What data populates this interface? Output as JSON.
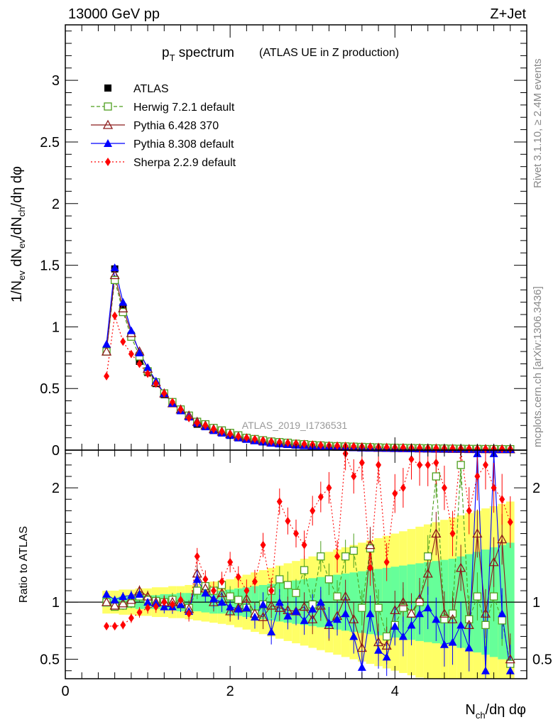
{
  "header": {
    "left": "13000 GeV pp",
    "right": "Z+Jet"
  },
  "side_text": {
    "top": "Rivet 3.1.10, ≥ 2.4M events",
    "bottom": "mcplots.cern.ch [arXiv:1306.3436]"
  },
  "watermark": "ATLAS_2019_I1736531",
  "chart_data": [
    {
      "type": "scatter",
      "panel": "main",
      "title": "p_T spectrum",
      "subtitle": "(ATLAS UE in Z production)",
      "ylabel": "1/N_ev dN_ev/dN_ch/dη dφ",
      "xlim": [
        0,
        5.6
      ],
      "ylim": [
        0,
        3.45
      ],
      "yticks": [
        0,
        0.5,
        1,
        1.5,
        2,
        2.5,
        3
      ],
      "ytick_labels": [
        "0",
        "0.5",
        "1",
        "1.5",
        "2",
        "2.5",
        "3"
      ],
      "legend_position": "top-left",
      "x": [
        0.5,
        0.6,
        0.7,
        0.8,
        0.9,
        1.0,
        1.1,
        1.2,
        1.3,
        1.4,
        1.5,
        1.6,
        1.7,
        1.8,
        1.9,
        2.0,
        2.1,
        2.2,
        2.3,
        2.4,
        2.5,
        2.6,
        2.7,
        2.8,
        2.9,
        3.0,
        3.1,
        3.2,
        3.3,
        3.4,
        3.5,
        3.6,
        3.7,
        3.8,
        3.9,
        4.0,
        4.1,
        4.2,
        4.3,
        4.4,
        4.5,
        4.6,
        4.7,
        4.8,
        4.9,
        5.0,
        5.1,
        5.2,
        5.3,
        5.4
      ],
      "series": [
        {
          "name": "ATLAS",
          "color": "#000000",
          "marker": "square",
          "values": [
            0.8,
            1.47,
            1.16,
            0.93,
            0.72,
            0.63,
            0.54,
            0.45,
            0.38,
            0.33,
            0.27,
            0.21,
            0.19,
            0.16,
            0.14,
            0.12,
            0.1,
            0.09,
            0.08,
            0.07,
            0.06,
            0.055,
            0.05,
            0.045,
            0.04,
            0.035,
            0.032,
            0.03,
            0.028,
            0.026,
            0.024,
            0.022,
            0.02,
            0.019,
            0.018,
            0.017,
            0.016,
            0.015,
            0.014,
            0.013,
            0.012,
            0.011,
            0.01,
            0.01,
            0.009,
            0.009,
            0.008,
            0.008,
            0.007,
            0.007
          ]
        },
        {
          "name": "Herwig 7.2.1 default",
          "color": "#4d9f1e",
          "marker": "open-square",
          "values": [
            0.8,
            1.38,
            1.12,
            0.92,
            0.76,
            0.64,
            0.55,
            0.46,
            0.39,
            0.33,
            0.28,
            0.23,
            0.21,
            0.18,
            0.16,
            0.14,
            0.12,
            0.1,
            0.09,
            0.08,
            0.07,
            0.065,
            0.06,
            0.052,
            0.048,
            0.042,
            0.038,
            0.034,
            0.032,
            0.03,
            0.028,
            0.026,
            0.024,
            0.022,
            0.02,
            0.019,
            0.018,
            0.017,
            0.016,
            0.015,
            0.014,
            0.013,
            0.012,
            0.011,
            0.01,
            0.01,
            0.009,
            0.009,
            0.008,
            0.008
          ]
        },
        {
          "name": "Pythia 6.428 370",
          "color": "#8b1a1a",
          "marker": "open-triangle",
          "values": [
            0.8,
            1.42,
            1.15,
            0.95,
            0.8,
            0.66,
            0.55,
            0.46,
            0.38,
            0.33,
            0.28,
            0.23,
            0.2,
            0.17,
            0.15,
            0.13,
            0.11,
            0.095,
            0.082,
            0.072,
            0.063,
            0.057,
            0.052,
            0.047,
            0.042,
            0.037,
            0.033,
            0.03,
            0.028,
            0.026,
            0.024,
            0.022,
            0.02,
            0.019,
            0.018,
            0.017,
            0.016,
            0.015,
            0.014,
            0.013,
            0.012,
            0.011,
            0.01,
            0.01,
            0.009,
            0.009,
            0.008,
            0.008,
            0.007,
            0.007
          ]
        },
        {
          "name": "Pythia 8.308 default",
          "color": "#0000ff",
          "marker": "triangle",
          "values": [
            0.86,
            1.48,
            1.2,
            0.97,
            0.79,
            0.67,
            0.56,
            0.46,
            0.38,
            0.32,
            0.27,
            0.22,
            0.19,
            0.16,
            0.14,
            0.12,
            0.1,
            0.088,
            0.076,
            0.066,
            0.057,
            0.051,
            0.046,
            0.041,
            0.037,
            0.033,
            0.03,
            0.027,
            0.025,
            0.023,
            0.021,
            0.019,
            0.018,
            0.017,
            0.016,
            0.015,
            0.014,
            0.013,
            0.012,
            0.011,
            0.01,
            0.01,
            0.009,
            0.009,
            0.008,
            0.008,
            0.007,
            0.007,
            0.006,
            0.006
          ]
        },
        {
          "name": "Sherpa 2.2.9 default",
          "color": "#ff0000",
          "marker": "diamond",
          "values": [
            0.6,
            1.09,
            0.88,
            0.78,
            0.7,
            0.62,
            0.54,
            0.46,
            0.39,
            0.33,
            0.26,
            0.22,
            0.2,
            0.17,
            0.15,
            0.13,
            0.11,
            0.1,
            0.09,
            0.08,
            0.07,
            0.065,
            0.06,
            0.055,
            0.05,
            0.045,
            0.04,
            0.038,
            0.035,
            0.033,
            0.031,
            0.029,
            0.027,
            0.025,
            0.023,
            0.021,
            0.02,
            0.019,
            0.018,
            0.017,
            0.016,
            0.015,
            0.014,
            0.013,
            0.012,
            0.011,
            0.011,
            0.01,
            0.01,
            0.009
          ]
        }
      ]
    },
    {
      "type": "scatter",
      "panel": "ratio",
      "ylabel": "Ratio to ATLAS",
      "xlabel": "N_ch/dη dφ",
      "xlim": [
        0,
        5.6
      ],
      "ylim": [
        0.33,
        2.33
      ],
      "xticks": [
        0,
        2,
        4
      ],
      "xtick_labels": [
        "0",
        "2",
        "4"
      ],
      "yticks": [
        0.5,
        1,
        2
      ],
      "ytick_labels": [
        "0.5",
        "1",
        "2"
      ],
      "reference_line": 1,
      "band_colors": {
        "stat": "#66ff99",
        "total": "#ffff66"
      },
      "x": [
        0.5,
        0.6,
        0.7,
        0.8,
        0.9,
        1.0,
        1.1,
        1.2,
        1.3,
        1.4,
        1.5,
        1.6,
        1.7,
        1.8,
        1.9,
        2.0,
        2.1,
        2.2,
        2.3,
        2.4,
        2.5,
        2.6,
        2.7,
        2.8,
        2.9,
        3.0,
        3.1,
        3.2,
        3.3,
        3.4,
        3.5,
        3.6,
        3.7,
        3.8,
        3.9,
        4.0,
        4.1,
        4.2,
        4.3,
        4.4,
        4.5,
        4.6,
        4.7,
        4.8,
        4.9,
        5.0,
        5.1,
        5.2,
        5.3,
        5.4
      ],
      "band_stat": [
        0.04,
        0.04,
        0.05,
        0.05,
        0.06,
        0.06,
        0.06,
        0.07,
        0.07,
        0.08,
        0.08,
        0.08,
        0.09,
        0.1,
        0.1,
        0.11,
        0.12,
        0.13,
        0.14,
        0.15,
        0.16,
        0.17,
        0.18,
        0.19,
        0.2,
        0.21,
        0.22,
        0.23,
        0.24,
        0.25,
        0.26,
        0.27,
        0.28,
        0.29,
        0.3,
        0.31,
        0.32,
        0.33,
        0.34,
        0.35,
        0.36,
        0.37,
        0.38,
        0.4,
        0.42,
        0.44,
        0.46,
        0.48,
        0.5,
        0.52
      ],
      "band_total": [
        0.1,
        0.1,
        0.11,
        0.11,
        0.12,
        0.12,
        0.13,
        0.13,
        0.14,
        0.14,
        0.15,
        0.16,
        0.17,
        0.18,
        0.19,
        0.2,
        0.22,
        0.24,
        0.26,
        0.28,
        0.3,
        0.32,
        0.34,
        0.36,
        0.38,
        0.4,
        0.42,
        0.44,
        0.46,
        0.48,
        0.5,
        0.52,
        0.54,
        0.56,
        0.58,
        0.6,
        0.62,
        0.64,
        0.66,
        0.68,
        0.7,
        0.72,
        0.74,
        0.76,
        0.78,
        0.8,
        0.82,
        0.84,
        0.86,
        0.88
      ],
      "series": [
        {
          "name": "Herwig 7.2.1 default",
          "color": "#4d9f1e",
          "marker": "open-square",
          "values": [
            1.0,
            0.96,
            0.97,
            0.99,
            1.05,
            1.02,
            1.01,
            1.0,
            1.02,
            0.98,
            0.95,
            1.1,
            1.14,
            1.1,
            1.15,
            1.05,
            1.02,
            0.95,
            0.9,
            0.98,
            1.1,
            1.2,
            1.15,
            1.08,
            1.28,
            0.98,
            1.4,
            1.2,
            1.05,
            1.4,
            1.45,
            0.95,
            1.47,
            0.95,
            0.7,
            0.8,
            0.95,
            0.9,
            1.0,
            1.4,
            2.1,
            0.85,
            0.9,
            2.2,
            0.85,
            1.05,
            0.8,
            1.05,
            0.84,
            0.46
          ]
        },
        {
          "name": "Pythia 6.428 370",
          "color": "#8b1a1a",
          "marker": "open-triangle",
          "values": [
            1.0,
            0.97,
            0.99,
            1.02,
            1.1,
            1.05,
            1.0,
            1.0,
            1.0,
            1.0,
            0.94,
            1.25,
            1.12,
            1.0,
            1.08,
            0.92,
            0.95,
            1.03,
            0.9,
            0.87,
            0.97,
            0.95,
            0.93,
            0.92,
            0.96,
            0.85,
            0.97,
            0.8,
            0.88,
            1.05,
            0.85,
            0.6,
            1.5,
            0.65,
            0.62,
            0.93,
            1.0,
            0.9,
            1.03,
            1.25,
            1.6,
            0.9,
            0.85,
            1.3,
            0.8,
            1.6,
            0.9,
            1.35,
            1.55,
            0.5
          ]
        },
        {
          "name": "Pythia 8.308 default",
          "color": "#0000ff",
          "marker": "triangle",
          "values": [
            1.07,
            1.02,
            1.05,
            1.06,
            1.07,
            1.0,
            0.99,
            0.96,
            0.96,
            0.98,
            0.92,
            1.2,
            1.08,
            1.03,
            1.0,
            0.96,
            0.94,
            0.95,
            0.87,
            0.98,
            0.74,
            1.0,
            0.88,
            0.92,
            0.84,
            0.94,
            1.0,
            0.82,
            0.85,
            0.9,
            0.7,
            0.43,
            0.9,
            0.58,
            0.52,
            0.79,
            0.7,
            0.8,
            0.9,
            0.95,
            0.85,
            0.63,
            0.65,
            0.8,
            0.6,
            2.3,
            0.4,
            2.3,
            0.9,
            0.4
          ]
        },
        {
          "name": "Sherpa 2.2.9 default",
          "color": "#ff0000",
          "marker": "diamond",
          "values": [
            0.79,
            0.79,
            0.8,
            0.86,
            0.91,
            0.95,
            0.96,
            1.0,
            0.98,
            1.02,
            0.9,
            1.4,
            1.2,
            1.1,
            1.18,
            1.35,
            1.22,
            1.1,
            1.18,
            1.5,
            1.1,
            1.88,
            1.71,
            1.6,
            1.5,
            1.8,
            1.92,
            2.0,
            1.4,
            2.3,
            2.1,
            2.22,
            1.3,
            2.2,
            1.35,
            1.95,
            2.0,
            2.25,
            2.2,
            2.2,
            2.22,
            2.0,
            1.6,
            2.4,
            1.8,
            2.1,
            2.2,
            2.0,
            1.9,
            1.7
          ]
        }
      ]
    }
  ]
}
